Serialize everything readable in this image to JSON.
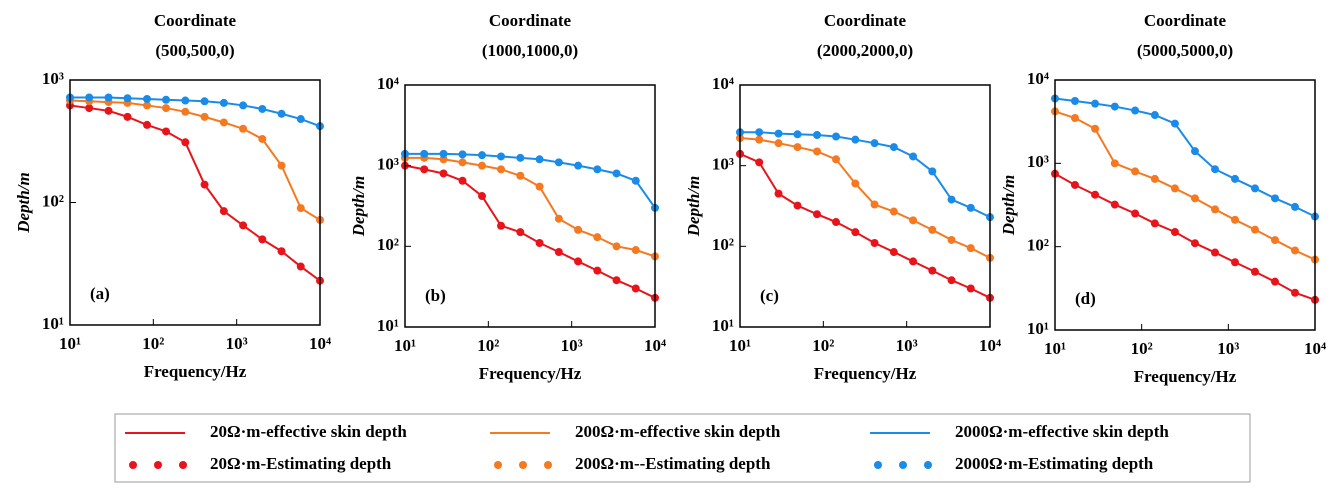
{
  "chart_data": [
    {
      "type": "line",
      "title": "Coordinate",
      "subtitle": "(500,500,0)",
      "panel": "(a)",
      "xlabel": "Frequency/Hz",
      "ylabel": "Depth/m",
      "log_x": true,
      "log_y": true,
      "xlim": [
        10,
        10000
      ],
      "xticks": [
        {
          "value": 10,
          "label": "10¹"
        },
        {
          "value": 100,
          "label": "10²"
        },
        {
          "value": 1000,
          "label": "10³"
        },
        {
          "value": 10000,
          "label": "10⁴"
        }
      ],
      "ylim": [
        10,
        1000
      ],
      "yticks": [
        {
          "value": 10,
          "label": "10¹"
        },
        {
          "value": 100,
          "label": "10²"
        },
        {
          "value": 1000,
          "label": "10³"
        }
      ],
      "x": [
        10,
        17,
        29,
        49,
        84,
        142,
        242,
        412,
        702,
        1194,
        2031,
        3455,
        5878,
        10000
      ],
      "series": [
        {
          "name": "20Ω·m-effective skin depth",
          "color": "#e8141c",
          "style": "line",
          "values": [
            620,
            590,
            560,
            500,
            430,
            380,
            310,
            140,
            85,
            65,
            50,
            40,
            30,
            23
          ]
        },
        {
          "name": "200Ω·m-effective skin depth",
          "color": "#f47920",
          "style": "line",
          "values": [
            680,
            670,
            660,
            650,
            620,
            590,
            550,
            500,
            450,
            400,
            330,
            200,
            90,
            72
          ]
        },
        {
          "name": "2000Ω·m-effective skin depth",
          "color": "#1a8ce8",
          "style": "line",
          "values": [
            720,
            720,
            720,
            710,
            700,
            690,
            680,
            670,
            650,
            620,
            580,
            530,
            480,
            420
          ]
        },
        {
          "name": "20Ω·m-Estimating depth",
          "color": "#e8141c",
          "style": "dots",
          "values": [
            620,
            590,
            560,
            500,
            430,
            380,
            310,
            140,
            85,
            65,
            50,
            40,
            30,
            23
          ]
        },
        {
          "name": "200Ω·m--Estimating depth",
          "color": "#f47920",
          "style": "dots",
          "values": [
            680,
            670,
            660,
            650,
            620,
            590,
            550,
            500,
            450,
            400,
            330,
            200,
            90,
            72
          ]
        },
        {
          "name": "2000Ω·m-Estimating depth",
          "color": "#1a8ce8",
          "style": "dots",
          "values": [
            720,
            720,
            720,
            710,
            700,
            690,
            680,
            670,
            650,
            620,
            580,
            530,
            480,
            420
          ]
        }
      ]
    },
    {
      "type": "line",
      "title": "Coordinate",
      "subtitle": "(1000,1000,0)",
      "panel": "(b)",
      "xlabel": "Frequency/Hz",
      "ylabel": "Depth/m",
      "log_x": true,
      "log_y": true,
      "xlim": [
        10,
        10000
      ],
      "xticks": [
        {
          "value": 10,
          "label": "10¹"
        },
        {
          "value": 100,
          "label": "10²"
        },
        {
          "value": 1000,
          "label": "10³"
        },
        {
          "value": 10000,
          "label": "10⁴"
        }
      ],
      "ylim": [
        10,
        10000
      ],
      "yticks": [
        {
          "value": 10,
          "label": "10¹"
        },
        {
          "value": 100,
          "label": "10²"
        },
        {
          "value": 1000,
          "label": "10³"
        },
        {
          "value": 10000,
          "label": "10⁴"
        }
      ],
      "x": [
        10,
        17,
        29,
        49,
        84,
        142,
        242,
        412,
        702,
        1194,
        2031,
        3455,
        5878,
        10000
      ],
      "series": [
        {
          "color": "#e8141c",
          "style": "line",
          "values": [
            1000,
            900,
            800,
            650,
            420,
            180,
            150,
            110,
            85,
            65,
            50,
            38,
            30,
            23
          ]
        },
        {
          "color": "#f47920",
          "style": "line",
          "values": [
            1250,
            1250,
            1200,
            1100,
            1000,
            900,
            750,
            550,
            220,
            160,
            130,
            100,
            90,
            75
          ]
        },
        {
          "color": "#1a8ce8",
          "style": "line",
          "values": [
            1400,
            1400,
            1400,
            1380,
            1350,
            1300,
            1250,
            1200,
            1100,
            1000,
            900,
            800,
            650,
            300
          ]
        },
        {
          "color": "#e8141c",
          "style": "dots",
          "values": [
            1000,
            900,
            800,
            650,
            420,
            180,
            150,
            110,
            85,
            65,
            50,
            38,
            30,
            23
          ]
        },
        {
          "color": "#f47920",
          "style": "dots",
          "values": [
            1250,
            1250,
            1200,
            1100,
            1000,
            900,
            750,
            550,
            220,
            160,
            130,
            100,
            90,
            75
          ]
        },
        {
          "color": "#1a8ce8",
          "style": "dots",
          "values": [
            1400,
            1400,
            1400,
            1380,
            1350,
            1300,
            1250,
            1200,
            1100,
            1000,
            900,
            800,
            650,
            300
          ]
        }
      ]
    },
    {
      "type": "line",
      "title": "Coordinate",
      "subtitle": "(2000,2000,0)",
      "panel": "(c)",
      "xlabel": "Frequency/Hz",
      "ylabel": "Depth/m",
      "log_x": true,
      "log_y": true,
      "xlim": [
        10,
        10000
      ],
      "xticks": [
        {
          "value": 10,
          "label": "10¹"
        },
        {
          "value": 100,
          "label": "10²"
        },
        {
          "value": 1000,
          "label": "10³"
        },
        {
          "value": 10000,
          "label": "10⁴"
        }
      ],
      "ylim": [
        10,
        10000
      ],
      "yticks": [
        {
          "value": 10,
          "label": "10¹"
        },
        {
          "value": 100,
          "label": "10²"
        },
        {
          "value": 1000,
          "label": "10³"
        },
        {
          "value": 10000,
          "label": "10⁴"
        }
      ],
      "x": [
        10,
        17,
        29,
        49,
        84,
        142,
        242,
        412,
        702,
        1194,
        2031,
        3455,
        5878,
        10000
      ],
      "series": [
        {
          "color": "#e8141c",
          "style": "line",
          "values": [
            1400,
            1100,
            450,
            320,
            250,
            200,
            150,
            110,
            85,
            65,
            50,
            38,
            30,
            23
          ]
        },
        {
          "color": "#f47920",
          "style": "line",
          "values": [
            2200,
            2100,
            1900,
            1700,
            1500,
            1200,
            600,
            330,
            270,
            210,
            160,
            120,
            95,
            72
          ]
        },
        {
          "color": "#1a8ce8",
          "style": "line",
          "values": [
            2600,
            2600,
            2500,
            2450,
            2400,
            2300,
            2100,
            1900,
            1700,
            1300,
            850,
            380,
            300,
            230
          ]
        },
        {
          "color": "#e8141c",
          "style": "dots",
          "values": [
            1400,
            1100,
            450,
            320,
            250,
            200,
            150,
            110,
            85,
            65,
            50,
            38,
            30,
            23
          ]
        },
        {
          "color": "#f47920",
          "style": "dots",
          "values": [
            2200,
            2100,
            1900,
            1700,
            1500,
            1200,
            600,
            330,
            270,
            210,
            160,
            120,
            95,
            72
          ]
        },
        {
          "color": "#1a8ce8",
          "style": "dots",
          "values": [
            2600,
            2600,
            2500,
            2450,
            2400,
            2300,
            2100,
            1900,
            1700,
            1300,
            850,
            380,
            300,
            230
          ]
        }
      ]
    },
    {
      "type": "line",
      "title": "Coordinate",
      "subtitle": "(5000,5000,0)",
      "panel": "(d)",
      "xlabel": "Frequency/Hz",
      "ylabel": "Depth/m",
      "log_x": true,
      "log_y": true,
      "xlim": [
        10,
        10000
      ],
      "xticks": [
        {
          "value": 10,
          "label": "10¹"
        },
        {
          "value": 100,
          "label": "10²"
        },
        {
          "value": 1000,
          "label": "10³"
        },
        {
          "value": 10000,
          "label": "10⁴"
        }
      ],
      "ylim": [
        10,
        10000
      ],
      "yticks": [
        {
          "value": 10,
          "label": "10¹"
        },
        {
          "value": 100,
          "label": "10²"
        },
        {
          "value": 1000,
          "label": "10³"
        },
        {
          "value": 10000,
          "label": "10⁴"
        }
      ],
      "x": [
        10,
        17,
        29,
        49,
        84,
        142,
        242,
        412,
        702,
        1194,
        2031,
        3455,
        5878,
        10000
      ],
      "series": [
        {
          "color": "#e8141c",
          "style": "line",
          "values": [
            750,
            550,
            420,
            320,
            250,
            190,
            150,
            110,
            85,
            65,
            50,
            38,
            28,
            23
          ]
        },
        {
          "color": "#f47920",
          "style": "line",
          "values": [
            4200,
            3500,
            2600,
            1000,
            800,
            650,
            500,
            380,
            280,
            210,
            160,
            120,
            90,
            70
          ]
        },
        {
          "color": "#1a8ce8",
          "style": "line",
          "values": [
            6000,
            5600,
            5200,
            4800,
            4300,
            3800,
            3000,
            1400,
            850,
            650,
            500,
            380,
            300,
            230
          ]
        },
        {
          "color": "#e8141c",
          "style": "dots",
          "values": [
            750,
            550,
            420,
            320,
            250,
            190,
            150,
            110,
            85,
            65,
            50,
            38,
            28,
            23
          ]
        },
        {
          "color": "#f47920",
          "style": "dots",
          "values": [
            4200,
            3500,
            2600,
            1000,
            800,
            650,
            500,
            380,
            280,
            210,
            160,
            120,
            90,
            70
          ]
        },
        {
          "color": "#1a8ce8",
          "style": "dots",
          "values": [
            6000,
            5600,
            5200,
            4800,
            4300,
            3800,
            3000,
            1400,
            850,
            650,
            500,
            380,
            300,
            230
          ]
        }
      ]
    }
  ]
}
